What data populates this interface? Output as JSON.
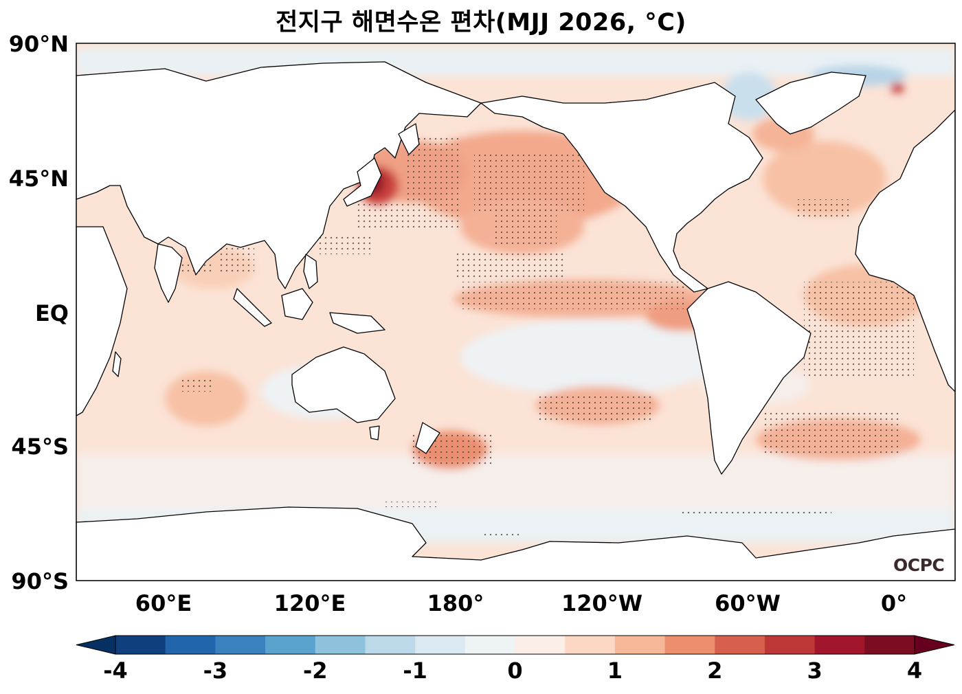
{
  "title": "전지구 해면수온 편차(MJJ 2026, °C)",
  "lat_labels": [
    "90°N",
    "45°N",
    "EQ",
    "45°S",
    "90°S"
  ],
  "lon_labels": [
    "60°E",
    "120°E",
    "180°",
    "120°W",
    "60°W",
    "0°"
  ],
  "logo": "OCPC",
  "colorbar": {
    "ticks": [
      "-4",
      "-3",
      "-2",
      "-1",
      "0",
      "1",
      "2",
      "3",
      "4"
    ],
    "levels": [
      -4,
      -3.5,
      -3,
      -2.5,
      -2,
      -1.5,
      -1,
      -0.5,
      0,
      0.5,
      1,
      1.5,
      2,
      2.5,
      3,
      3.5,
      4
    ],
    "colors": [
      "#053061",
      "#0f407d",
      "#2166ac",
      "#3a82bd",
      "#5aa3cf",
      "#8ec1dc",
      "#bcd9ea",
      "#dbe9f2",
      "#eef3f6",
      "#faeee7",
      "#fcd8c4",
      "#f7b89a",
      "#ec8f6f",
      "#d6604d",
      "#be3737",
      "#a2162b",
      "#7a0d22",
      "#67001f"
    ]
  },
  "map_data": {
    "projection": "PlateCarree, central longitude 160°E",
    "lon_range": [
      "20°E",
      "200°W (20°E + 360)"
    ],
    "lat_range": [
      -90,
      90
    ],
    "field": "SST anomaly (°C)",
    "stippling": "statistically significant"
  }
}
